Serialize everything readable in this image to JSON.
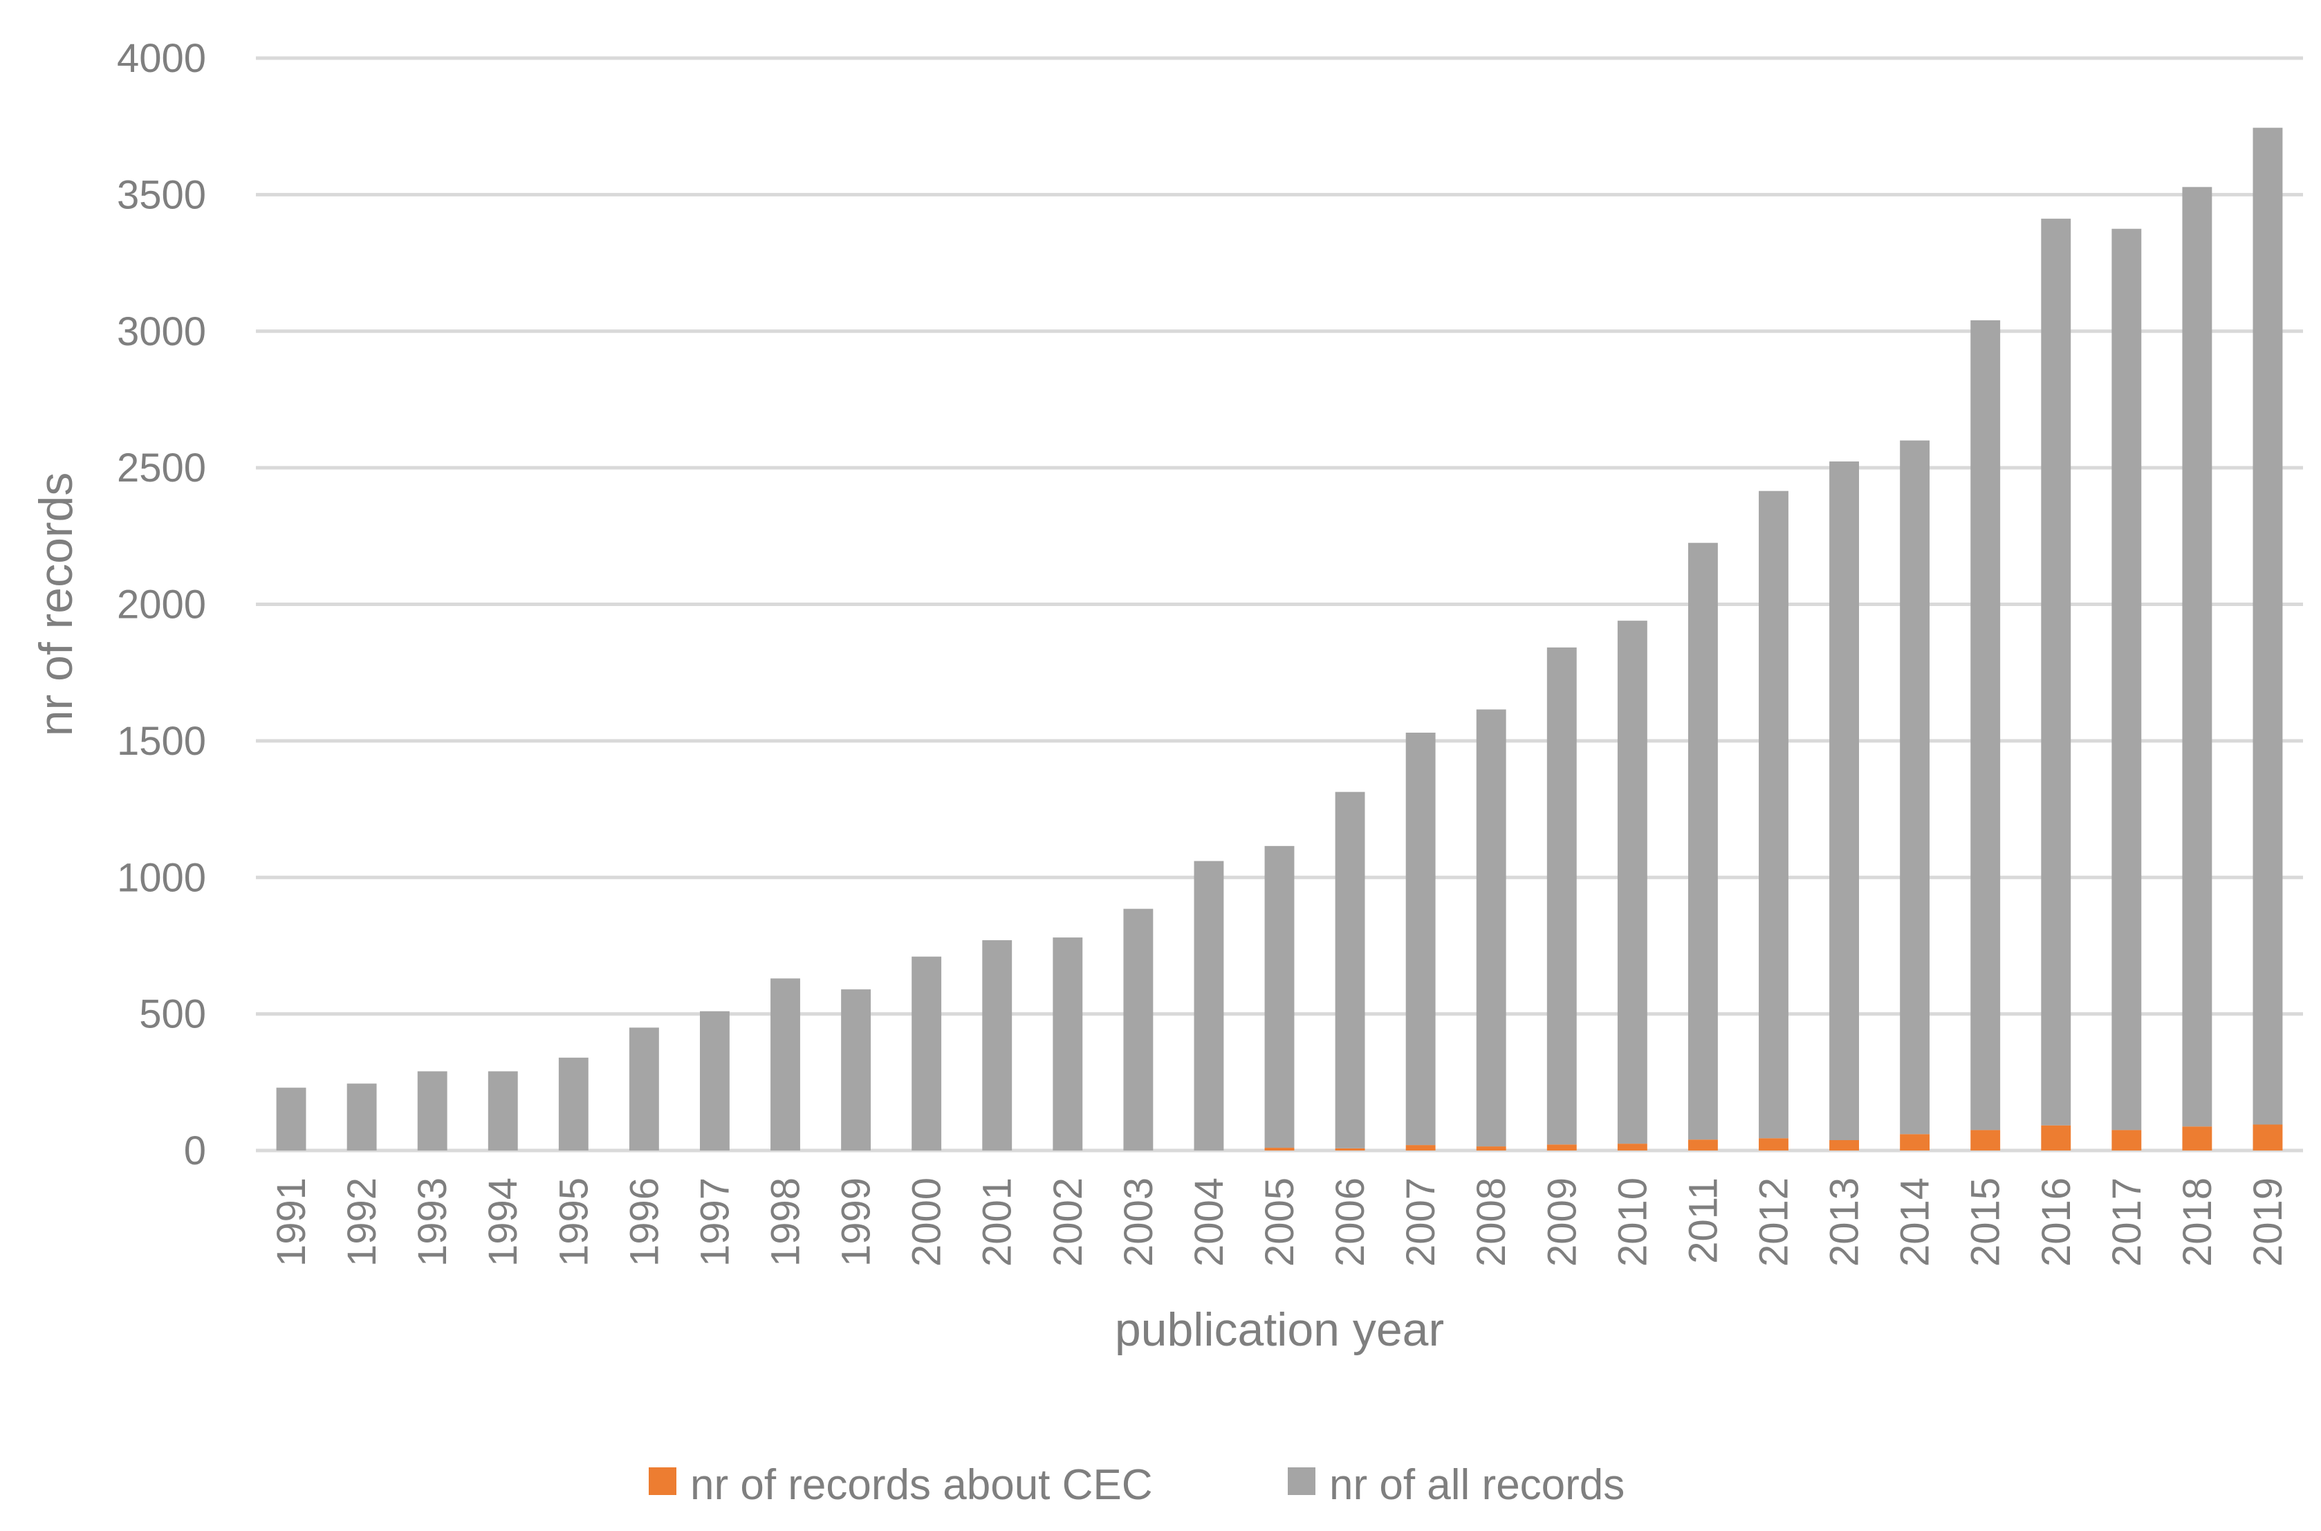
{
  "chart_data": {
    "type": "bar",
    "stacked": true,
    "xlabel": "publication year",
    "ylabel": "nr of records",
    "ylim": [
      0,
      4000
    ],
    "yticks": [
      0,
      500,
      1000,
      1500,
      2000,
      2500,
      3000,
      3500,
      4000
    ],
    "grid": true,
    "legend_position": "bottom",
    "categories": [
      "1991",
      "1992",
      "1993",
      "1994",
      "1995",
      "1996",
      "1997",
      "1998",
      "1999",
      "2000",
      "2001",
      "2002",
      "2003",
      "2004",
      "2005",
      "2006",
      "2007",
      "2008",
      "2009",
      "2010",
      "2011",
      "2012",
      "2013",
      "2014",
      "2015",
      "2016",
      "2017",
      "2018",
      "2019"
    ],
    "series": [
      {
        "name": "nr of records about CEC",
        "color": "#ed7d31",
        "values": [
          0,
          0,
          0,
          0,
          0,
          0,
          0,
          0,
          0,
          0,
          0,
          0,
          0,
          0,
          10,
          8,
          20,
          15,
          22,
          25,
          40,
          45,
          38,
          60,
          75,
          92,
          75,
          88,
          95
        ]
      },
      {
        "name": "nr of all records",
        "color": "#a5a5a5",
        "values": [
          230,
          245,
          290,
          290,
          340,
          450,
          510,
          630,
          590,
          710,
          770,
          780,
          885,
          1060,
          1105,
          1305,
          1510,
          1600,
          1820,
          1915,
          2185,
          2370,
          2485,
          2540,
          2965,
          3320,
          3300,
          3440,
          3650
        ]
      }
    ]
  }
}
